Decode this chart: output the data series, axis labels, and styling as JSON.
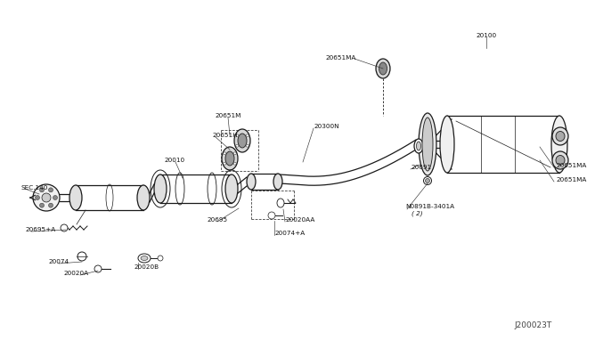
{
  "bg_color": "#ffffff",
  "lc": "#1a1a1a",
  "watermark": "J200023T",
  "labels": [
    [
      "20100",
      536,
      30,
      "center"
    ],
    [
      "20651MA",
      390,
      55,
      "right"
    ],
    [
      "20691",
      451,
      178,
      "left"
    ],
    [
      "N0891B-3401A",
      445,
      222,
      "left"
    ],
    [
      "( 2)",
      452,
      230,
      "left"
    ],
    [
      "20651MA",
      614,
      176,
      "left"
    ],
    [
      "20651MA",
      614,
      192,
      "left"
    ],
    [
      "20300N",
      342,
      132,
      "left"
    ],
    [
      "20651M",
      246,
      120,
      "center"
    ],
    [
      "20651H",
      228,
      142,
      "left"
    ],
    [
      "20010",
      186,
      170,
      "center"
    ],
    [
      "20695",
      234,
      237,
      "center"
    ],
    [
      "20020AA",
      310,
      237,
      "left"
    ],
    [
      "20074+A",
      298,
      252,
      "left"
    ],
    [
      "SEC.140",
      14,
      201,
      "left"
    ],
    [
      "20695+A",
      18,
      248,
      "left"
    ],
    [
      "20074",
      56,
      284,
      "center"
    ],
    [
      "20020A",
      76,
      297,
      "center"
    ],
    [
      "20020B",
      140,
      290,
      "left"
    ]
  ]
}
